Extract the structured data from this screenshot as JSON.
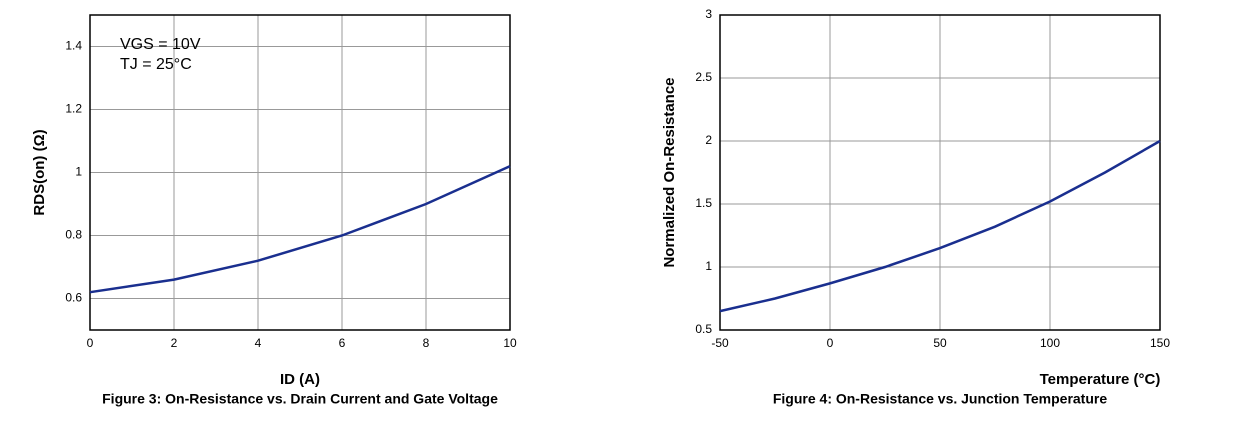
{
  "chart_data": [
    {
      "type": "line",
      "title": "Figure 3: On-Resistance vs. Drain Current and Gate Voltage",
      "x_label": "ID (A)",
      "y_label": "RDS(on) (Ω)",
      "annotations": [
        "VGS = 10V",
        "TJ = 25°C"
      ],
      "x": [
        0,
        2,
        4,
        6,
        8,
        10
      ],
      "series": [
        {
          "name": "VGS = 10V",
          "color": "#1a2f8f",
          "values": [
            0.62,
            0.66,
            0.72,
            0.8,
            0.9,
            1.02
          ]
        }
      ],
      "xlim": [
        0,
        10
      ],
      "xticks": [
        0,
        2,
        4,
        6,
        8,
        10
      ],
      "ylim": [
        0.5,
        1.5
      ],
      "yticks": [
        0.6,
        0.8,
        1.0,
        1.2,
        1.4
      ],
      "grid": true
    },
    {
      "type": "line",
      "title": "Figure 4: On-Resistance vs. Junction Temperature",
      "x_label": "Temperature (°C)",
      "y_label": "Normalized On-Resistance",
      "x": [
        -50,
        -25,
        0,
        25,
        50,
        75,
        100,
        125,
        150
      ],
      "series": [
        {
          "name": "Normalized",
          "color": "#1a2f8f",
          "values": [
            0.65,
            0.75,
            0.87,
            1.0,
            1.15,
            1.32,
            1.52,
            1.75,
            2.0
          ]
        }
      ],
      "xlim": [
        -50,
        150
      ],
      "xticks": [
        -50,
        0,
        50,
        100,
        150
      ],
      "ylim": [
        0.5,
        3.0
      ],
      "yticks": [
        0.5,
        1.0,
        1.5,
        2.0,
        2.5,
        3.0
      ],
      "grid": true
    }
  ]
}
